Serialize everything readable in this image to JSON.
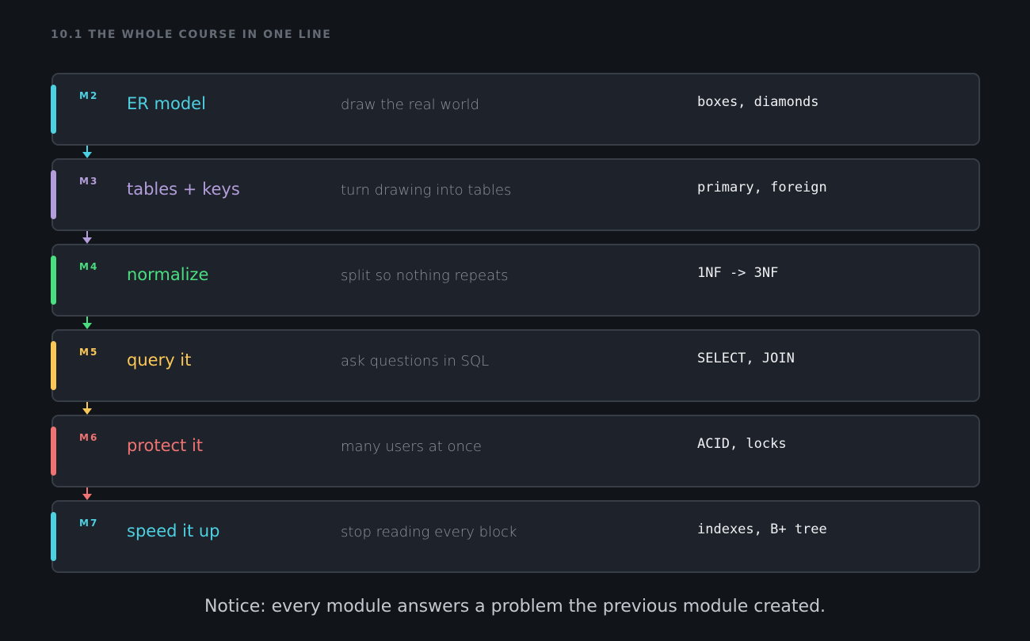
{
  "header": {
    "title": "10.1  THE WHOLE COURSE IN ONE LINE"
  },
  "modules": [
    {
      "tag": "M2",
      "title": "ER model",
      "description": "draw the real world",
      "keywords": "boxes, diamonds",
      "color": "#4dd0e1"
    },
    {
      "tag": "M3",
      "title": "tables + keys",
      "description": "turn drawing into tables",
      "keywords": "primary, foreign",
      "color": "#b39ddb"
    },
    {
      "tag": "M4",
      "title": "normalize",
      "description": "split so nothing repeats",
      "keywords": "1NF -> 3NF",
      "color": "#4ade80"
    },
    {
      "tag": "M5",
      "title": "query it",
      "description": "ask questions in SQL",
      "keywords": "SELECT, JOIN",
      "color": "#fbc756"
    },
    {
      "tag": "M6",
      "title": "protect it",
      "description": "many users at once",
      "keywords": "ACID, locks",
      "color": "#f07373"
    },
    {
      "tag": "M7",
      "title": "speed it up",
      "description": "stop reading every block",
      "keywords": "indexes, B+ tree",
      "color": "#4dd0e1"
    }
  ],
  "footer": {
    "note": "Notice: every module answers a problem the previous module created."
  }
}
